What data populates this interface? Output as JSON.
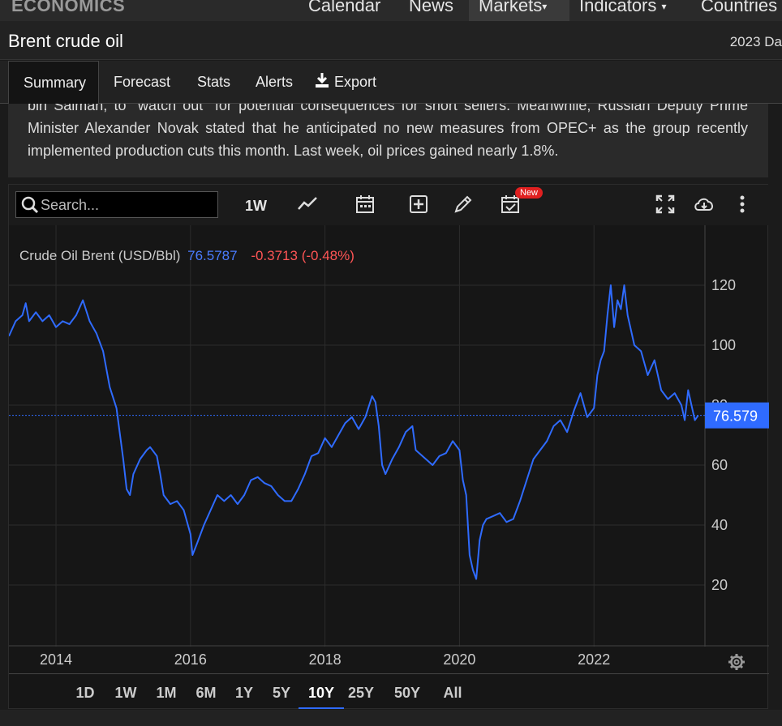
{
  "nav": {
    "logo": "ECONOMICS",
    "items": [
      {
        "label": "Calendar",
        "caret": false,
        "active": false
      },
      {
        "label": "News",
        "caret": false,
        "active": false
      },
      {
        "label": "Markets",
        "caret": true,
        "active": true
      },
      {
        "label": "Indicators",
        "caret": true,
        "active": false
      },
      {
        "label": "Countries",
        "caret": false,
        "active": false
      }
    ]
  },
  "header": {
    "title": "Brent crude oil",
    "date": "2023 Da"
  },
  "tabs": [
    {
      "label": "Summary",
      "active": true
    },
    {
      "label": "Forecast",
      "active": false
    },
    {
      "label": "Stats",
      "active": false
    },
    {
      "label": "Alerts",
      "active": false
    },
    {
      "label": "Export",
      "active": false,
      "icon": "download-icon"
    }
  ],
  "summary": {
    "text": "bin Salman, to \"watch out\" for potential consequences for short sellers. Meanwhile, Russian Deputy Prime Minister Alexander Novak stated that he anticipated no new measures from OPEC+ as the group recently implemented production cuts this month. Last week, oil prices gained nearly 1.8%."
  },
  "toolbar": {
    "search_placeholder": "Search...",
    "interval": "1W",
    "new_badge": "New",
    "icons": [
      "search-icon",
      "line-chart-icon",
      "calendar-icon",
      "add-indicator-icon",
      "pencil-icon",
      "calendar-check-icon",
      "fullscreen-icon",
      "cloud-download-icon",
      "more-vertical-icon"
    ]
  },
  "legend": {
    "name": "Crude Oil Brent (USD/Bbl)",
    "price": "76.5787",
    "change": "-0.3713 (-0.48%)"
  },
  "chart_data": {
    "type": "line",
    "series": [
      {
        "name": "Crude Oil Brent (USD/Bbl)",
        "color": "#2f6bff",
        "x": [
          2013.3,
          2013.4,
          2013.5,
          2013.55,
          2013.6,
          2013.7,
          2013.8,
          2013.9,
          2014.0,
          2014.1,
          2014.2,
          2014.3,
          2014.4,
          2014.5,
          2014.55,
          2014.6,
          2014.7,
          2014.8,
          2014.9,
          2015.0,
          2015.05,
          2015.1,
          2015.15,
          2015.25,
          2015.35,
          2015.4,
          2015.5,
          2015.55,
          2015.6,
          2015.7,
          2015.8,
          2015.9,
          2016.0,
          2016.03,
          2016.1,
          2016.2,
          2016.3,
          2016.4,
          2016.5,
          2016.6,
          2016.7,
          2016.8,
          2016.9,
          2017.0,
          2017.1,
          2017.2,
          2017.3,
          2017.4,
          2017.5,
          2017.6,
          2017.7,
          2017.8,
          2017.9,
          2018.0,
          2018.1,
          2018.2,
          2018.3,
          2018.4,
          2018.5,
          2018.6,
          2018.7,
          2018.75,
          2018.8,
          2018.85,
          2018.9,
          2019.0,
          2019.1,
          2019.2,
          2019.3,
          2019.35,
          2019.4,
          2019.5,
          2019.6,
          2019.7,
          2019.8,
          2019.9,
          2020.0,
          2020.05,
          2020.1,
          2020.15,
          2020.2,
          2020.25,
          2020.3,
          2020.35,
          2020.4,
          2020.5,
          2020.6,
          2020.7,
          2020.8,
          2020.9,
          2021.0,
          2021.1,
          2021.2,
          2021.3,
          2021.4,
          2021.5,
          2021.6,
          2021.7,
          2021.8,
          2021.9,
          2022.0,
          2022.05,
          2022.1,
          2022.15,
          2022.2,
          2022.25,
          2022.3,
          2022.35,
          2022.4,
          2022.45,
          2022.5,
          2022.6,
          2022.7,
          2022.8,
          2022.9,
          2023.0,
          2023.1,
          2023.2,
          2023.3,
          2023.35,
          2023.4,
          2023.45,
          2023.5,
          2023.55
        ],
        "values": [
          103,
          108,
          110,
          114,
          108,
          111,
          108,
          110,
          106,
          108,
          107,
          110,
          115,
          108,
          106,
          104,
          98,
          86,
          79,
          62,
          52,
          50,
          57,
          62,
          65,
          66,
          63,
          57,
          50,
          47,
          48,
          45,
          37,
          30,
          34,
          40,
          45,
          50,
          48,
          50,
          47,
          50,
          55,
          56,
          54,
          53,
          50,
          48,
          48,
          52,
          57,
          63,
          64,
          69,
          66,
          70,
          74,
          76,
          72,
          76,
          83,
          81,
          73,
          60,
          57,
          62,
          66,
          71,
          73,
          65,
          64,
          62,
          60,
          63,
          64,
          68,
          65,
          55,
          50,
          30,
          25,
          22,
          35,
          40,
          42,
          43,
          44,
          41,
          42,
          48,
          55,
          62,
          65,
          68,
          73,
          75,
          71,
          78,
          84,
          76,
          79,
          90,
          95,
          98,
          110,
          120,
          106,
          115,
          112,
          120,
          110,
          100,
          98,
          90,
          95,
          85,
          82,
          84,
          80,
          75,
          85,
          80,
          75,
          76.58
        ]
      }
    ],
    "x_ticks": [
      "2014",
      "2016",
      "2018",
      "2020",
      "2022"
    ],
    "y_ticks": [
      20,
      40,
      60,
      80,
      100,
      120
    ],
    "xlim": [
      2013.3,
      2023.65
    ],
    "ylim": [
      0,
      140
    ],
    "last_value_label": "76.579",
    "y_axis_side": "right",
    "grid": true,
    "xlabel": "",
    "ylabel": ""
  },
  "ranges": [
    {
      "label": "1D",
      "active": false
    },
    {
      "label": "1W",
      "active": false
    },
    {
      "label": "1M",
      "active": false
    },
    {
      "label": "6M",
      "active": false
    },
    {
      "label": "1Y",
      "active": false
    },
    {
      "label": "5Y",
      "active": false
    },
    {
      "label": "10Y",
      "active": true
    },
    {
      "label": "25Y",
      "active": false
    },
    {
      "label": "50Y",
      "active": false
    },
    {
      "label": "All",
      "active": false
    }
  ]
}
